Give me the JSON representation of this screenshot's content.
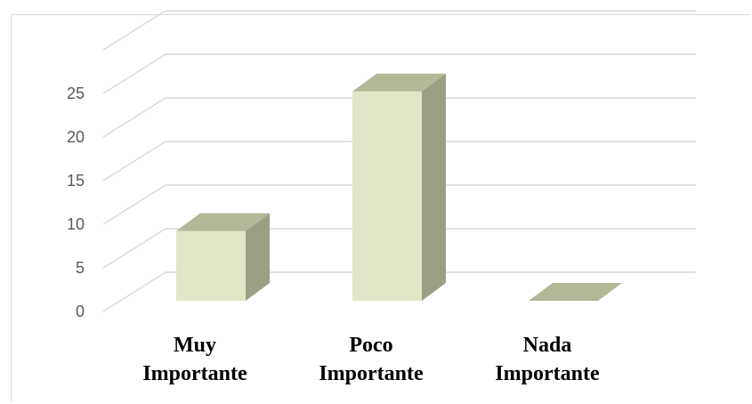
{
  "chart_data": {
    "type": "bar",
    "style": "3d-column",
    "categories": [
      [
        "Muy",
        "Importante"
      ],
      [
        "Poco",
        "Importante"
      ],
      [
        "Nada",
        "Importante"
      ]
    ],
    "values": [
      8,
      24,
      0
    ],
    "yticks": [
      "0",
      "5",
      "10",
      "15",
      "20",
      "25"
    ],
    "ylim": [
      0,
      25
    ],
    "grid": true,
    "legend": "none",
    "title": "",
    "xlabel": "",
    "ylabel": "",
    "colors": {
      "front": "#e0e6c8",
      "side": "#9aa085",
      "top": "#b2b898",
      "grid": "#d9d9d9",
      "tick_text": "#595959"
    }
  }
}
